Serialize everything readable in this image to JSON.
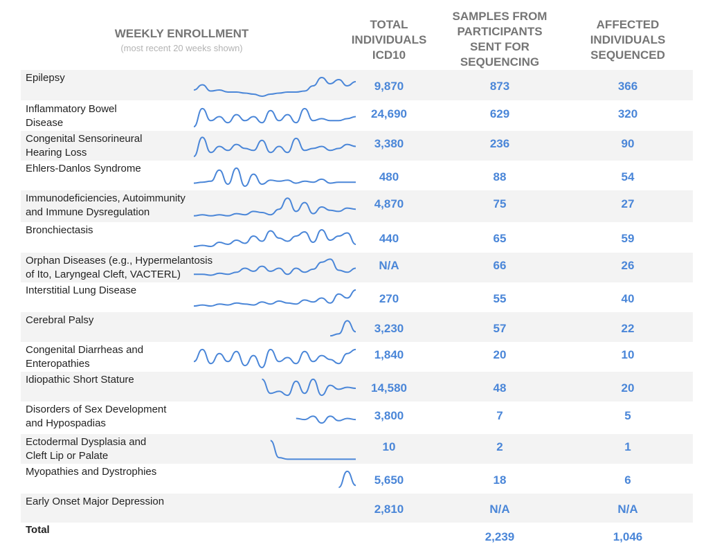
{
  "header": {
    "weekly_enrollment": "WEEKLY ENROLLMENT",
    "weekly_sub": "(most recent 20 weeks shown)",
    "total_individuals": [
      "TOTAL",
      "INDIVIDUALS",
      "ICD10"
    ],
    "samples_sent": [
      "SAMPLES FROM",
      "PARTICIPANTS",
      "SENT FOR",
      "SEQUENCING"
    ],
    "affected_sequenced": [
      "AFFECTED",
      "INDIVIDUALS",
      "SEQUENCED"
    ]
  },
  "colors": {
    "sparkline": "#4a86d8",
    "values": "#4a86d8",
    "stripe": "#f3f3f3"
  },
  "rows": [
    {
      "condition": [
        "Epilepsy"
      ],
      "total": "9,870",
      "samples": "873",
      "affected": "366"
    },
    {
      "condition": [
        "Inflammatory Bowel",
        "Disease"
      ],
      "total": "24,690",
      "samples": "629",
      "affected": "320"
    },
    {
      "condition": [
        "Congenital Sensorineural",
        "Hearing Loss"
      ],
      "total": "3,380",
      "samples": "236",
      "affected": "90"
    },
    {
      "condition": [
        "Ehlers-Danlos Syndrome"
      ],
      "total": "480",
      "samples": "88",
      "affected": "54"
    },
    {
      "condition": [
        "Immunodeficiencies, Autoimmunity",
        "and Immune Dysregulation"
      ],
      "total": "4,870",
      "samples": "75",
      "affected": "27"
    },
    {
      "condition": [
        "Bronchiectasis"
      ],
      "total": "440",
      "samples": "65",
      "affected": "59"
    },
    {
      "condition": [
        "Orphan Diseases (e.g., Hypermelantosis",
        "of Ito, Laryngeal Cleft, VACTERL)"
      ],
      "total": "N/A",
      "samples": "66",
      "affected": "26"
    },
    {
      "condition": [
        "Interstitial Lung Disease"
      ],
      "total": "270",
      "samples": "55",
      "affected": "40"
    },
    {
      "condition": [
        "Cerebral Palsy"
      ],
      "total": "3,230",
      "samples": "57",
      "affected": "22"
    },
    {
      "condition": [
        "Congenital Diarrheas and",
        "Enteropathies"
      ],
      "total": "1,840",
      "samples": "20",
      "affected": "10"
    },
    {
      "condition": [
        "Idiopathic Short Stature"
      ],
      "total": "14,580",
      "samples": "48",
      "affected": "20"
    },
    {
      "condition": [
        "Disorders of Sex Development",
        "and Hypospadias"
      ],
      "total": "3,800",
      "samples": "7",
      "affected": "5"
    },
    {
      "condition": [
        "Ectodermal Dysplasia and",
        "Cleft Lip or Palate"
      ],
      "total": "10",
      "samples": "2",
      "affected": "1"
    },
    {
      "condition": [
        "Myopathies and Dystrophies"
      ],
      "total": "5,650",
      "samples": "18",
      "affected": "6"
    },
    {
      "condition": [
        "Early Onset Major Depression"
      ],
      "total": "2,810",
      "samples": "N/A",
      "affected": "N/A"
    }
  ],
  "total_row": {
    "label": "Total",
    "samples": "2,239",
    "affected": "1,046"
  },
  "chart_data": {
    "type": "line",
    "xlabel": "",
    "ylabel": "",
    "x": [
      1,
      2,
      3,
      4,
      5,
      6,
      7,
      8,
      9,
      10,
      11,
      12,
      13,
      14,
      15,
      16,
      17,
      18,
      19,
      20
    ],
    "series": [
      {
        "values": [
          null,
          null,
          null,
          null,
          null,
          null,
          null,
          null,
          null,
          null,
          null,
          null,
          null,
          null,
          null,
          null,
          null,
          null,
          null,
          null
        ]
      }
    ],
    "sparklines": [
      {
        "values": [
          0.3,
          0.55,
          0.25,
          0.3,
          0.2,
          0.2,
          0.15,
          0.1,
          0.0,
          0.1,
          0.15,
          0.2,
          0.2,
          0.25,
          0.5,
          0.9,
          0.6,
          0.8,
          0.5,
          0.7
        ]
      },
      {
        "values": [
          0.0,
          0.9,
          0.3,
          0.5,
          0.2,
          0.6,
          0.3,
          0.5,
          0.2,
          0.8,
          0.3,
          0.6,
          0.2,
          0.9,
          0.3,
          0.4,
          0.3,
          0.3,
          0.4,
          0.5
        ]
      },
      {
        "values": [
          0.0,
          0.95,
          0.2,
          0.5,
          0.3,
          0.6,
          0.4,
          0.3,
          0.8,
          0.2,
          0.5,
          0.2,
          0.9,
          0.3,
          0.4,
          0.5,
          0.3,
          0.4,
          0.6,
          0.5
        ]
      },
      {
        "values": [
          0.15,
          0.2,
          0.25,
          0.8,
          0.1,
          0.9,
          0.0,
          0.6,
          0.1,
          0.3,
          0.25,
          0.3,
          0.15,
          0.25,
          0.2,
          0.35,
          0.15,
          0.2,
          0.2,
          0.2
        ]
      },
      {
        "values": [
          0.1,
          0.15,
          0.1,
          0.15,
          0.1,
          0.2,
          0.15,
          0.3,
          0.25,
          0.15,
          0.4,
          0.9,
          0.3,
          0.7,
          0.2,
          0.5,
          0.35,
          0.3,
          0.45,
          0.4
        ]
      },
      {
        "values": [
          0.1,
          0.15,
          0.1,
          0.3,
          0.2,
          0.4,
          0.25,
          0.6,
          0.35,
          0.85,
          0.5,
          0.35,
          0.6,
          0.8,
          0.3,
          0.9,
          0.4,
          0.6,
          0.75,
          0.2
        ]
      },
      {
        "values": [
          0.2,
          0.2,
          0.15,
          0.25,
          0.2,
          0.3,
          0.5,
          0.35,
          0.6,
          0.35,
          0.5,
          0.2,
          0.5,
          0.3,
          0.45,
          0.8,
          0.95,
          0.4,
          0.3,
          0.5
        ]
      },
      {
        "values": [
          0.1,
          0.15,
          0.1,
          0.2,
          0.15,
          0.25,
          0.2,
          0.15,
          0.3,
          0.2,
          0.35,
          0.25,
          0.2,
          0.4,
          0.3,
          0.5,
          0.25,
          0.7,
          0.5,
          0.9
        ]
      },
      {
        "values": [
          null,
          null,
          null,
          null,
          null,
          null,
          null,
          null,
          null,
          null,
          null,
          null,
          null,
          null,
          null,
          null,
          0.1,
          0.2,
          0.85,
          0.3
        ]
      },
      {
        "values": [
          0.3,
          0.9,
          0.2,
          0.7,
          0.3,
          0.8,
          0.1,
          0.6,
          0.0,
          0.9,
          0.3,
          0.5,
          0.2,
          0.8,
          0.3,
          0.6,
          0.4,
          0.2,
          0.7,
          0.9
        ]
      },
      {
        "values": [
          null,
          null,
          null,
          null,
          null,
          null,
          null,
          null,
          0.9,
          0.2,
          0.3,
          0.1,
          0.8,
          0.2,
          0.9,
          0.1,
          0.6,
          0.4,
          0.5,
          0.45
        ]
      },
      {
        "values": [
          null,
          null,
          null,
          null,
          null,
          null,
          null,
          null,
          null,
          null,
          null,
          null,
          0.5,
          0.45,
          0.6,
          0.3,
          0.6,
          0.4,
          0.5,
          0.45
        ]
      },
      {
        "values": [
          null,
          null,
          null,
          null,
          null,
          null,
          null,
          null,
          null,
          0.95,
          0.1,
          0.02,
          0.02,
          0.02,
          0.02,
          0.02,
          0.02,
          0.02,
          0.02,
          0.02
        ]
      },
      {
        "values": [
          null,
          null,
          null,
          null,
          null,
          null,
          null,
          null,
          null,
          null,
          null,
          null,
          null,
          null,
          null,
          null,
          null,
          0.1,
          0.9,
          0.2
        ]
      },
      {
        "values": [
          null,
          null,
          null,
          null,
          null,
          null,
          null,
          null,
          null,
          null,
          null,
          null,
          null,
          null,
          null,
          null,
          null,
          null,
          null,
          null
        ]
      }
    ]
  }
}
